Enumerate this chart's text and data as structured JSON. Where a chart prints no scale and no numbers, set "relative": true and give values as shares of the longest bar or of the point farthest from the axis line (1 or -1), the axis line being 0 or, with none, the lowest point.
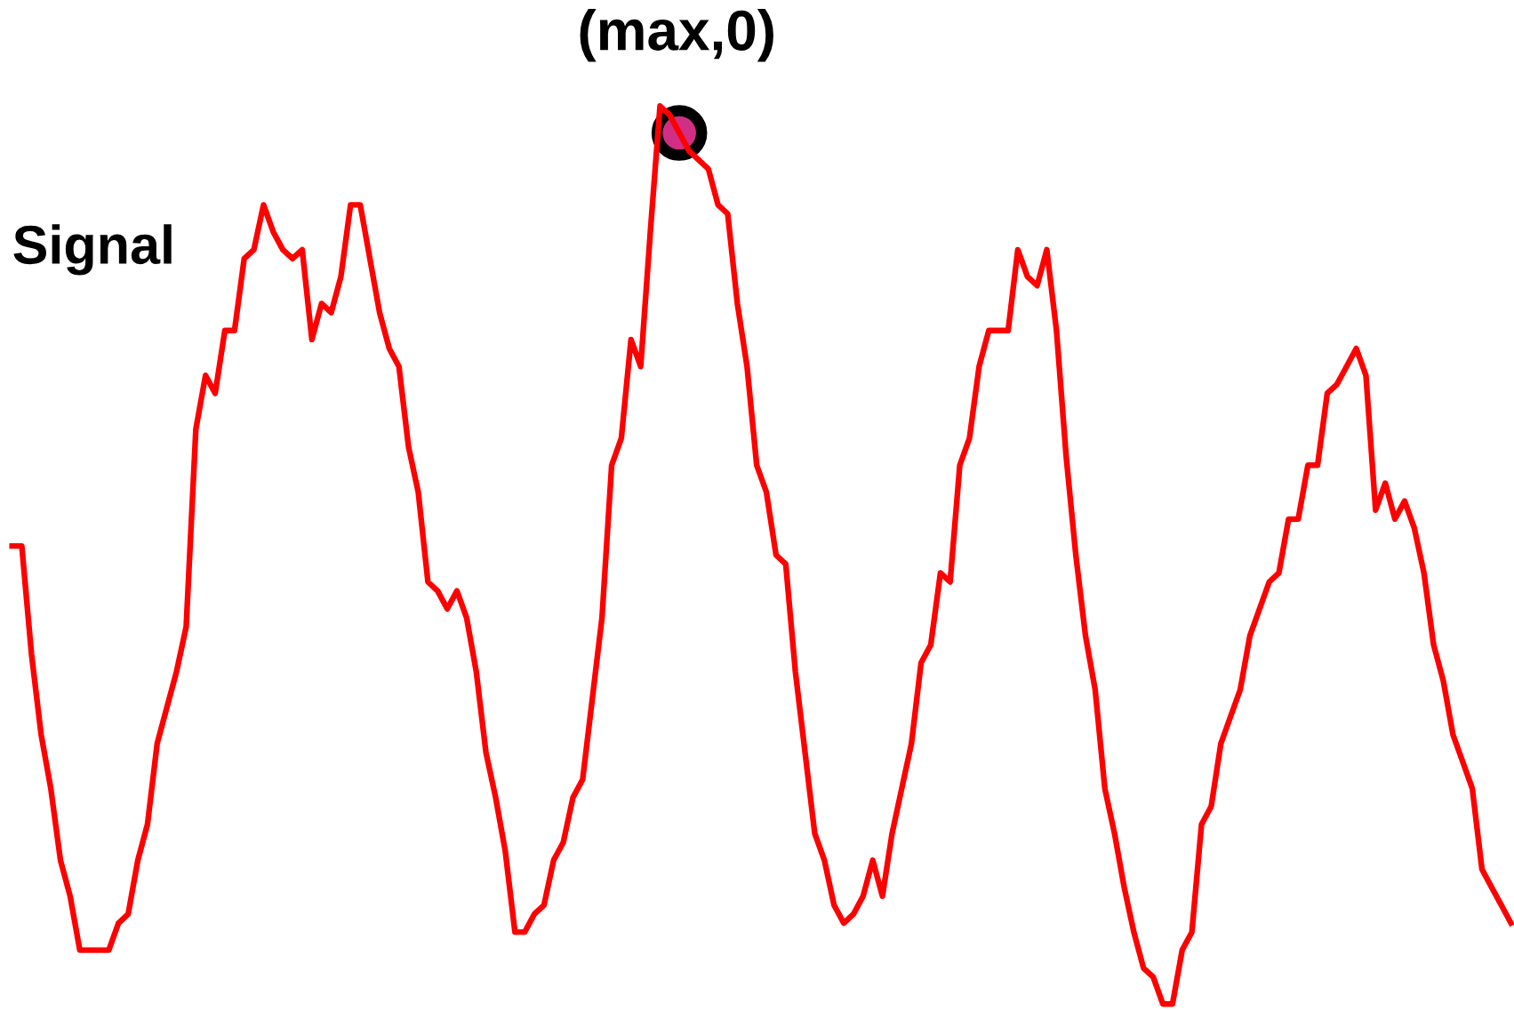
{
  "chart_data": {
    "type": "line",
    "relative": true,
    "legend": false,
    "categories": [
      null,
      null,
      null,
      null,
      null,
      null,
      null,
      null,
      null,
      null,
      null,
      null,
      null,
      null,
      null,
      null,
      null,
      null,
      null,
      null,
      null,
      null,
      null,
      null,
      null,
      null,
      null,
      null,
      null,
      null,
      null,
      null,
      null,
      null,
      null,
      null,
      null,
      null,
      null,
      null,
      null,
      null,
      null,
      null,
      null,
      null,
      null,
      null,
      null,
      null,
      null,
      null,
      null,
      null,
      null,
      null,
      null,
      null,
      null,
      null,
      null,
      null,
      null,
      null,
      null,
      null,
      null,
      null,
      null,
      null,
      null,
      null,
      null,
      null,
      null,
      null,
      null,
      null,
      null,
      null,
      null,
      null,
      null,
      null,
      null,
      null,
      null,
      null,
      null,
      null,
      null,
      null,
      null,
      null,
      null,
      null,
      null,
      null,
      null,
      null,
      null,
      null,
      null,
      null,
      null,
      null,
      null,
      null,
      null,
      null,
      null,
      null,
      null,
      null,
      null,
      null,
      null,
      null,
      null,
      null,
      null,
      null,
      null,
      null,
      null,
      null,
      null,
      null,
      null,
      null,
      null,
      null,
      null,
      null,
      null,
      null,
      null,
      null,
      null,
      null,
      null,
      null,
      null,
      null,
      null,
      null,
      null,
      null,
      null,
      null,
      null,
      null,
      null,
      null,
      null,
      null
    ],
    "annotations": [
      "(max,0)"
    ],
    "series": [
      {
        "name": "Signal",
        "color": "#ff0000",
        "values": [
          0.51,
          0.51,
          0.39,
          0.3,
          0.24,
          0.16,
          0.12,
          0.06,
          0.06,
          0.06,
          0.06,
          0.09,
          0.1,
          0.16,
          0.2,
          0.29,
          0.33,
          0.37,
          0.42,
          0.64,
          0.7,
          0.68,
          0.75,
          0.75,
          0.83,
          0.84,
          0.89,
          0.86,
          0.84,
          0.83,
          0.84,
          0.74,
          0.78,
          0.77,
          0.81,
          0.89,
          0.89,
          0.83,
          0.77,
          0.73,
          0.71,
          0.62,
          0.57,
          0.47,
          0.46,
          0.44,
          0.46,
          0.43,
          0.37,
          0.28,
          0.23,
          0.17,
          0.08,
          0.08,
          0.1,
          0.11,
          0.16,
          0.18,
          0.23,
          0.25,
          0.34,
          0.43,
          0.6,
          0.63,
          0.74,
          0.71,
          0.86,
          1.0,
          0.99,
          0.97,
          0.95,
          0.94,
          0.93,
          0.89,
          0.88,
          0.78,
          0.71,
          0.6,
          0.57,
          0.5,
          0.49,
          0.37,
          0.28,
          0.19,
          0.16,
          0.11,
          0.09,
          0.1,
          0.12,
          0.16,
          0.12,
          0.19,
          0.24,
          0.29,
          0.38,
          0.4,
          0.48,
          0.47,
          0.6,
          0.63,
          0.71,
          0.75,
          0.75,
          0.75,
          0.84,
          0.81,
          0.8,
          0.84,
          0.75,
          0.61,
          0.5,
          0.41,
          0.35,
          0.24,
          0.19,
          0.13,
          0.08,
          0.04,
          0.03,
          0.0,
          0.0,
          0.06,
          0.08,
          0.2,
          0.22,
          0.29,
          0.32,
          0.35,
          0.41,
          0.44,
          0.47,
          0.48,
          0.54,
          0.54,
          0.6,
          0.6,
          0.68,
          0.69,
          0.71,
          0.73,
          0.7,
          0.55,
          0.58,
          0.54,
          0.56,
          0.53,
          0.48,
          0.4,
          0.36,
          0.3,
          0.27,
          0.24,
          0.15,
          0.13,
          0.11,
          0.09
        ]
      }
    ]
  }
}
